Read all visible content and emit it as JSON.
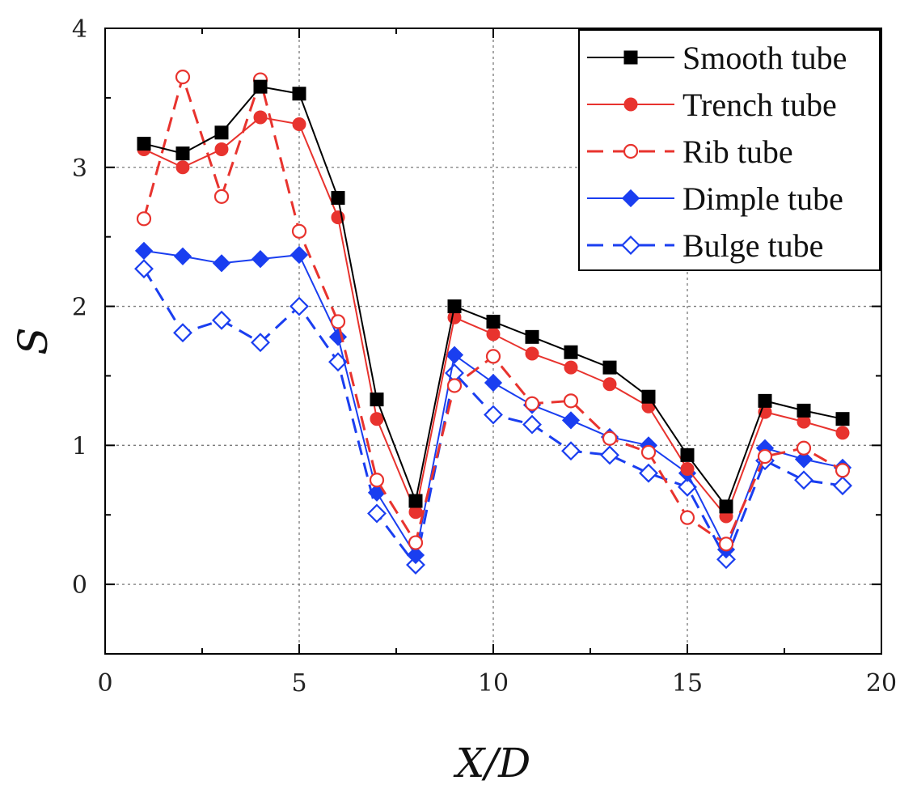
{
  "chart_data": {
    "type": "line",
    "xlabel": "X/D",
    "ylabel": "S",
    "xlim": [
      0,
      20
    ],
    "ylim": [
      -0.5,
      4
    ],
    "xticks": [
      0,
      5,
      10,
      15,
      20
    ],
    "yticks": [
      0,
      1,
      2,
      3,
      4
    ],
    "xtick_labels": [
      "0",
      "5",
      "10",
      "15",
      "20"
    ],
    "ytick_labels": [
      "0",
      "1",
      "2",
      "3",
      "4"
    ],
    "grid": true,
    "legend_position": "top-right",
    "x": [
      1,
      2,
      3,
      4,
      5,
      6,
      7,
      8,
      9,
      10,
      11,
      12,
      13,
      14,
      15,
      16,
      17,
      18,
      19
    ],
    "series": [
      {
        "name": "Smooth tube",
        "color": "#000000",
        "line": "solid",
        "marker": "square",
        "filled": true,
        "values": [
          3.17,
          3.1,
          3.25,
          3.58,
          3.53,
          2.78,
          1.33,
          0.6,
          2.0,
          1.89,
          1.78,
          1.67,
          1.56,
          1.35,
          0.93,
          0.56,
          1.32,
          1.25,
          1.19
        ]
      },
      {
        "name": "Trench tube",
        "color": "#e8332e",
        "line": "solid",
        "marker": "circle",
        "filled": true,
        "values": [
          3.13,
          3.0,
          3.13,
          3.36,
          3.31,
          2.64,
          1.19,
          0.52,
          1.92,
          1.8,
          1.66,
          1.56,
          1.44,
          1.28,
          0.83,
          0.49,
          1.24,
          1.17,
          1.09
        ]
      },
      {
        "name": "Rib tube",
        "color": "#e8332e",
        "line": "dashed",
        "marker": "circle",
        "filled": false,
        "values": [
          2.63,
          3.65,
          2.79,
          3.63,
          2.54,
          1.89,
          0.75,
          0.3,
          1.43,
          1.64,
          1.3,
          1.32,
          1.05,
          0.95,
          0.48,
          0.29,
          0.92,
          0.98,
          0.82
        ]
      },
      {
        "name": "Dimple tube",
        "color": "#1a3ef0",
        "line": "solid",
        "marker": "diamond",
        "filled": true,
        "values": [
          2.4,
          2.36,
          2.31,
          2.34,
          2.37,
          1.78,
          0.66,
          0.21,
          1.65,
          1.45,
          1.29,
          1.18,
          1.06,
          1.0,
          0.8,
          0.25,
          0.98,
          0.9,
          0.84
        ]
      },
      {
        "name": "Bulge tube",
        "color": "#1a3ef0",
        "line": "dashed",
        "marker": "diamond",
        "filled": false,
        "values": [
          2.27,
          1.81,
          1.9,
          1.74,
          2.0,
          1.6,
          0.51,
          0.14,
          1.52,
          1.22,
          1.15,
          0.96,
          0.93,
          0.8,
          0.7,
          0.18,
          0.89,
          0.75,
          0.71
        ]
      }
    ]
  }
}
